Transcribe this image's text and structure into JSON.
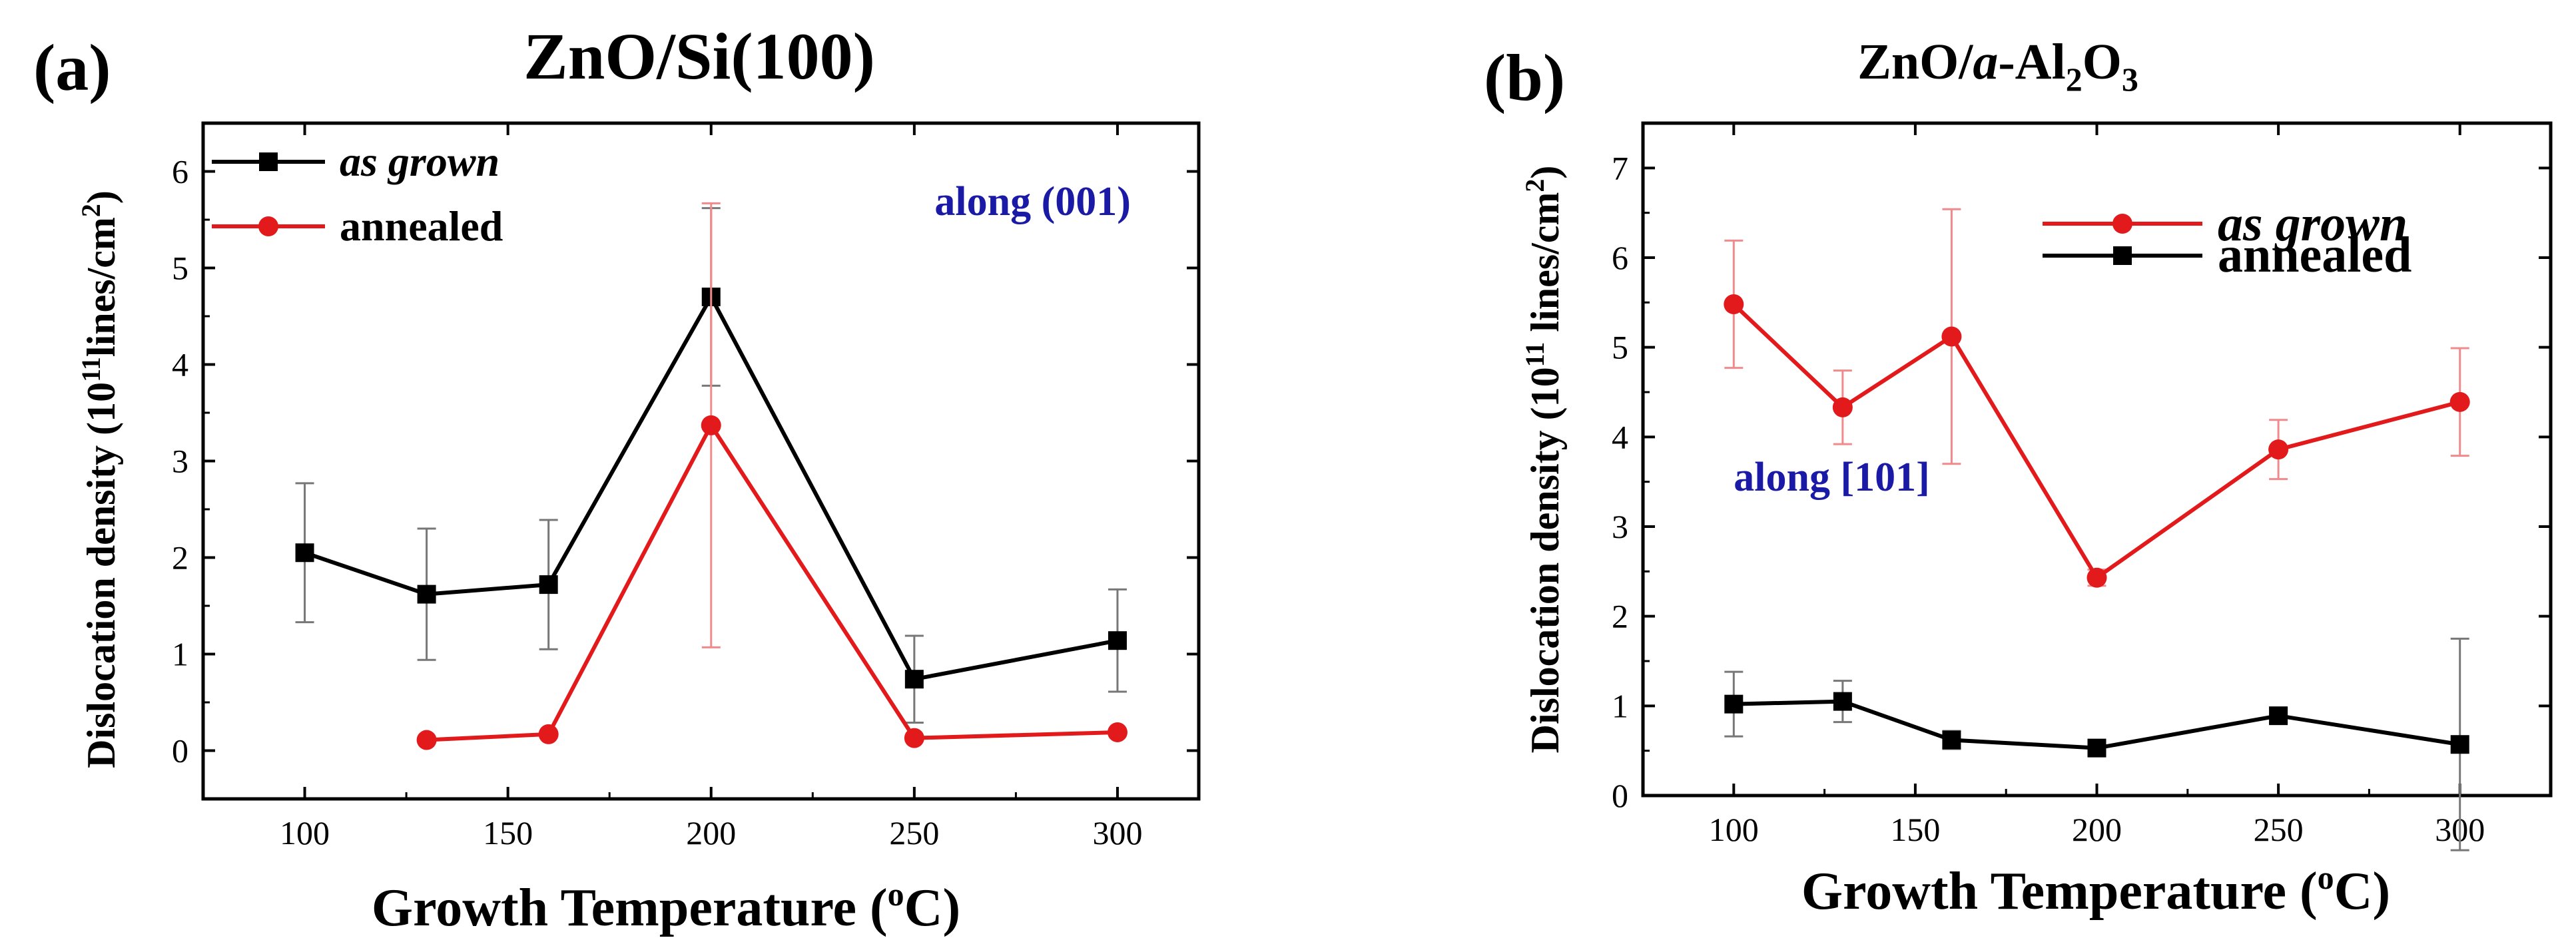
{
  "chart_data": [
    {
      "type": "line",
      "panel_label": "(a)",
      "title": "ZnO/Si(100)",
      "xlabel": "Growth Temperature (",
      "xlabel_sup": "o",
      "xlabel_end": "C)",
      "ylabel": "Dislocation density (10",
      "ylabel_sup": "11",
      "ylabel_mid": "lines/cm",
      "ylabel_sup2": "2",
      "ylabel_end": ")",
      "xlim": [
        75,
        320
      ],
      "ylim": [
        -0.5,
        6.5
      ],
      "xticks": [
        100,
        150,
        200,
        250,
        300
      ],
      "yticks": [
        0,
        1,
        2,
        3,
        4,
        5,
        6
      ],
      "annotation": {
        "text": "along (001)",
        "x": 255,
        "y": 5.55,
        "color": "#1a1aa6"
      },
      "legend": {
        "position": "top-left"
      },
      "series": [
        {
          "name": "as grown",
          "italic": true,
          "color": "#000000",
          "marker": "square",
          "x": [
            100,
            130,
            160,
            200,
            250,
            300
          ],
          "y": [
            2.05,
            1.62,
            1.72,
            4.7,
            0.74,
            1.14
          ],
          "err": [
            0.72,
            0.68,
            0.67,
            0.92,
            0.45,
            0.53
          ]
        },
        {
          "name": "annealed",
          "italic": false,
          "color": "#e31a1c",
          "marker": "circle",
          "x": [
            130,
            160,
            200,
            250,
            300
          ],
          "y": [
            0.11,
            0.17,
            3.37,
            0.13,
            0.19
          ],
          "err": [
            0,
            0,
            2.3,
            0,
            0
          ]
        }
      ]
    },
    {
      "type": "line",
      "panel_label": "(b)",
      "title": "ZnO/",
      "title_italic": "a",
      "title_mid": "-Al",
      "title_sub1": "2",
      "title_o": "O",
      "title_sub2": "3",
      "xlabel": "Growth Temperature (",
      "xlabel_sup": "o",
      "xlabel_end": "C)",
      "ylabel": "Dislocation density (10",
      "ylabel_sup": "11",
      "ylabel_mid": " lines/cm",
      "ylabel_sup2": "2",
      "ylabel_end": ")",
      "xlim": [
        75,
        325
      ],
      "ylim": [
        0,
        7.5
      ],
      "xticks": [
        100,
        150,
        200,
        250,
        300
      ],
      "yticks": [
        0,
        1,
        2,
        3,
        4,
        5,
        6,
        7
      ],
      "annotation": {
        "text": "along [101]",
        "x": 100,
        "y": 3.4,
        "color": "#1a1aa6"
      },
      "legend": {
        "position": "top-right"
      },
      "series": [
        {
          "name": "as grown",
          "italic": true,
          "color": "#e31a1c",
          "marker": "circle",
          "x": [
            100,
            130,
            160,
            200,
            250,
            300
          ],
          "y": [
            5.48,
            4.33,
            5.12,
            2.43,
            3.86,
            4.39
          ],
          "err": [
            0.71,
            0.41,
            1.42,
            0.09,
            0.33,
            0.6
          ]
        },
        {
          "name": "annealed",
          "italic": false,
          "color": "#000000",
          "marker": "square",
          "x": [
            100,
            130,
            160,
            200,
            250,
            300
          ],
          "y": [
            1.02,
            1.05,
            0.62,
            0.53,
            0.89,
            0.57
          ],
          "err": [
            0.36,
            0.23,
            0.1,
            0.05,
            0.08,
            1.18
          ]
        }
      ]
    }
  ]
}
